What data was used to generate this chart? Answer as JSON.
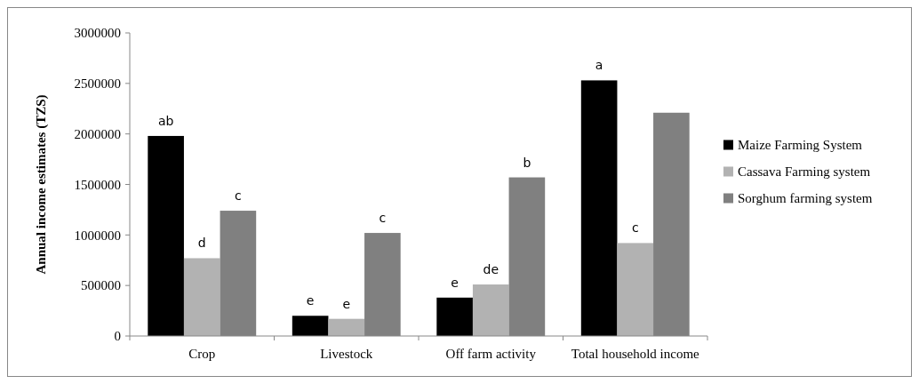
{
  "chart_data": {
    "type": "bar",
    "ylabel": "Annual income estimates (TZS)",
    "categories": [
      "Crop",
      "Livestock",
      "Off farm activity",
      "Total household income"
    ],
    "series": [
      {
        "name": "Maize Farming System",
        "color": "#000000",
        "values": [
          1980000,
          200000,
          380000,
          2530000
        ],
        "value_labels": [
          "ab",
          "e",
          "e",
          "a"
        ]
      },
      {
        "name": "Cassava Farming system",
        "color": "#b2b2b2",
        "values": [
          770000,
          170000,
          510000,
          920000
        ],
        "value_labels": [
          "d",
          "e",
          "de",
          "c"
        ]
      },
      {
        "name": "Sorghum farming system",
        "color": "#808080",
        "values": [
          1240000,
          1020000,
          1570000,
          2210000
        ],
        "value_labels": [
          "c",
          "c",
          "b",
          null
        ]
      }
    ],
    "ylim": [
      0,
      3000000
    ],
    "yticks": [
      0,
      500000,
      1000000,
      1500000,
      2000000,
      2500000,
      3000000
    ],
    "legend": "right"
  }
}
